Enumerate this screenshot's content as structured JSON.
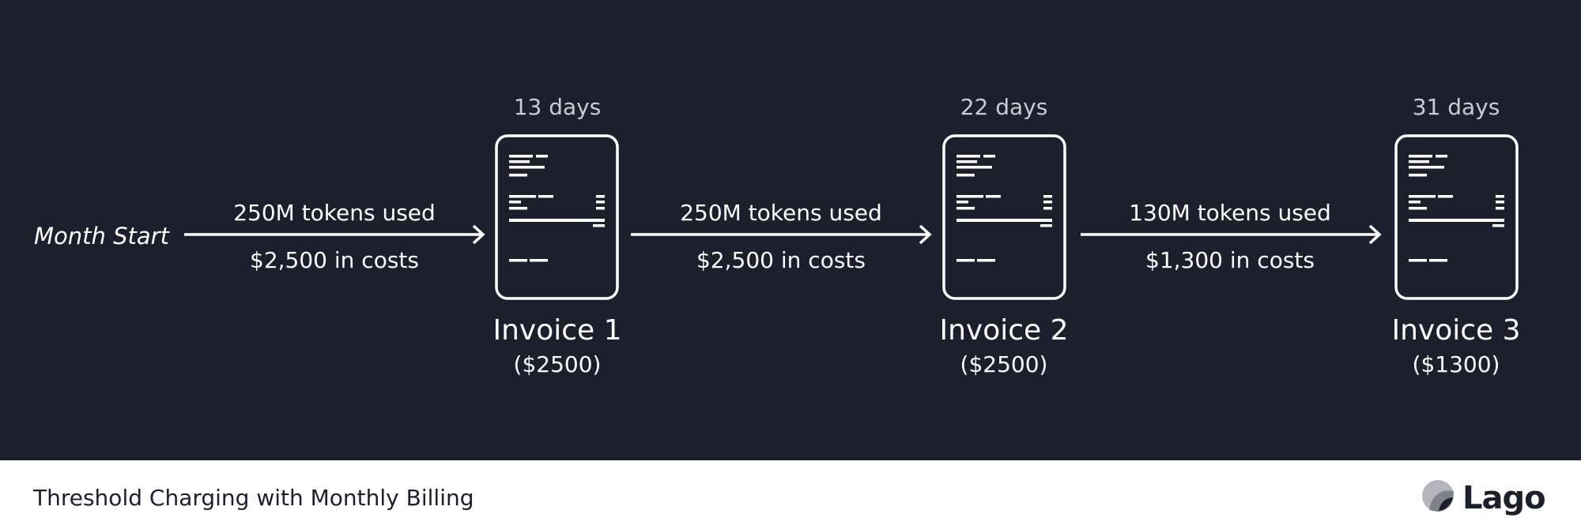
{
  "diagram": {
    "start_label": "Month Start",
    "segments": [
      {
        "usage": "250M tokens used",
        "cost": "$2,500 in costs"
      },
      {
        "usage": "250M tokens used",
        "cost": "$2,500 in costs"
      },
      {
        "usage": "130M tokens used",
        "cost": "$1,300 in costs"
      }
    ],
    "invoices": [
      {
        "days": "13 days",
        "title": "Invoice 1",
        "amount": "($2500)"
      },
      {
        "days": "22 days",
        "title": "Invoice 2",
        "amount": "($2500)"
      },
      {
        "days": "31 days",
        "title": "Invoice 3",
        "amount": "($1300)"
      }
    ]
  },
  "footer": {
    "title": "Threshold Charging with Monthly Billing",
    "logo_text": "Lago"
  },
  "colors": {
    "background": "#1b202d",
    "foreground": "#ffffff",
    "muted": "#c9ccd3"
  }
}
